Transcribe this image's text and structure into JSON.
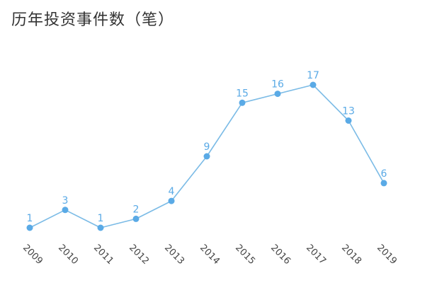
{
  "chart_data": {
    "type": "line",
    "title": "历年投资事件数（笔）",
    "xlabel": "",
    "ylabel": "",
    "x": [
      "2009",
      "2010",
      "2011",
      "2012",
      "2013",
      "2014",
      "2015",
      "2016",
      "2017",
      "2018",
      "2019"
    ],
    "series": [
      {
        "values": [
          1,
          3,
          1,
          2,
          4,
          9,
          15,
          16,
          17,
          13,
          6
        ]
      }
    ],
    "ylim": [
      1,
      17
    ],
    "grid": false,
    "legend": "none",
    "data_labels": true,
    "x_tick_rotation_deg": 45,
    "colors": {
      "line": "#7bbbe6",
      "point": "#5aaae6",
      "label": "#5aaae6"
    }
  }
}
